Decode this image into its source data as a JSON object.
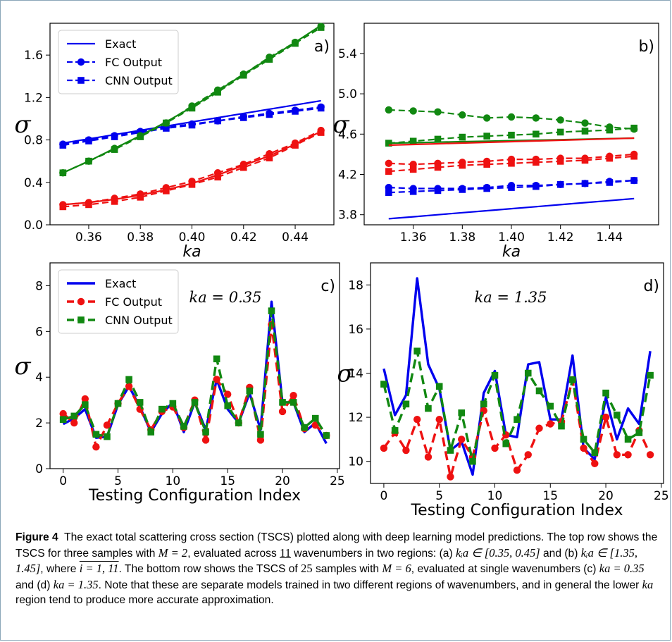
{
  "figure": {
    "caption_label": "Figure 4",
    "caption_text": "The exact total scattering cross section (TSCS) plotted along with deep learning model predictions. The top row shows the TSCS for three samples with M = 2, evaluated across 11 wavenumbers in two regions: (a) k_i a ∈ [0.35, 0.45] and (b) k_i a ∈ [1.35, 1.45], where i = 1,11. The bottom row shows the TSCS of 25 samples with M = 6, evaluated at single wavenumbers (c) ka = 0.35 and (d) ka = 1.35. Note that these are separate models trained in two different regions of wavenumbers, and in general the lower ka region tend to produce more accurate approximation.",
    "caption_parts": {
      "p1": "The exact total scattering cross section (TSCS) plotted along with deep learning model predictions. The top row shows the TSCS for three samples with ",
      "m2": "M = 2",
      "p2": ", evaluated across ",
      "n11": "11",
      "p3": " wavenumbers in two regions: (a) ",
      "ra": "kᵢa ∈ [0.35, 0.45]",
      "p4": " and (b) ",
      "rb": "kᵢa ∈ [1.35, 1.45]",
      "p5": ", where ",
      "iidx": "i = 1, 11",
      "p6": ". The bottom row shows the TSCS of ",
      "n25": "25",
      "p7": " samples with ",
      "m6": "M = 6",
      "p8": ", evaluated at single wavenumbers (c) ",
      "kc": "ka = 0.35",
      "p9": " and (d) ",
      "kd": "ka = 1.35",
      "p10": ". Note that these are separate models trained in two different regions of wavenumbers, and in general the lower ",
      "ka": "ka",
      "p11": " region tend to produce more accurate approximation."
    }
  },
  "colors": {
    "blue": "#0000ee",
    "red": "#ee1111",
    "green": "#118811"
  },
  "chart_data": [
    {
      "panel": "a)",
      "type": "line",
      "xlabel": "ka",
      "ylabel": "σ",
      "xlim": [
        0.345,
        0.455
      ],
      "ylim": [
        0.0,
        1.9
      ],
      "xticks": [
        0.36,
        0.38,
        0.4,
        0.42,
        0.44
      ],
      "xtick_labels": [
        "0.36",
        "0.38",
        "0.40",
        "0.42",
        "0.44"
      ],
      "yticks": [
        0.0,
        0.4,
        0.8,
        1.2,
        1.6
      ],
      "ytick_labels": [
        "0.0",
        "0.4",
        "0.8",
        "1.2",
        "1.6"
      ],
      "legend": {
        "placement": "top-left",
        "entries": [
          "Exact",
          "FC Output",
          "CNN Output"
        ]
      },
      "x": [
        0.35,
        0.36,
        0.37,
        0.38,
        0.39,
        0.4,
        0.41,
        0.42,
        0.43,
        0.44,
        0.45
      ],
      "series": [
        {
          "sample": "blue",
          "model": "Exact",
          "values": [
            0.77,
            0.81,
            0.85,
            0.89,
            0.93,
            0.97,
            1.01,
            1.05,
            1.09,
            1.13,
            1.17
          ]
        },
        {
          "sample": "blue",
          "model": "FC",
          "values": [
            0.76,
            0.8,
            0.84,
            0.88,
            0.92,
            0.95,
            0.98,
            1.02,
            1.05,
            1.08,
            1.11
          ]
        },
        {
          "sample": "blue",
          "model": "CNN",
          "values": [
            0.75,
            0.79,
            0.83,
            0.87,
            0.91,
            0.94,
            0.98,
            1.01,
            1.04,
            1.07,
            1.1
          ]
        },
        {
          "sample": "green",
          "model": "Exact",
          "values": [
            0.49,
            0.6,
            0.72,
            0.84,
            0.97,
            1.11,
            1.26,
            1.42,
            1.57,
            1.72,
            1.88
          ]
        },
        {
          "sample": "green",
          "model": "FC",
          "values": [
            0.49,
            0.6,
            0.72,
            0.84,
            0.96,
            1.12,
            1.27,
            1.42,
            1.58,
            1.72,
            1.87
          ]
        },
        {
          "sample": "green",
          "model": "CNN",
          "values": [
            0.49,
            0.6,
            0.71,
            0.83,
            0.96,
            1.1,
            1.25,
            1.41,
            1.56,
            1.71,
            1.86
          ]
        },
        {
          "sample": "red",
          "model": "Exact",
          "values": [
            0.19,
            0.21,
            0.24,
            0.28,
            0.33,
            0.39,
            0.47,
            0.56,
            0.65,
            0.76,
            0.88
          ]
        },
        {
          "sample": "red",
          "model": "FC",
          "values": [
            0.19,
            0.21,
            0.25,
            0.29,
            0.35,
            0.41,
            0.49,
            0.57,
            0.67,
            0.77,
            0.89
          ]
        },
        {
          "sample": "red",
          "model": "CNN",
          "values": [
            0.17,
            0.19,
            0.22,
            0.26,
            0.32,
            0.38,
            0.45,
            0.54,
            0.63,
            0.75,
            0.87
          ]
        }
      ]
    },
    {
      "panel": "b)",
      "type": "line",
      "xlabel": "ka",
      "ylabel": "σ",
      "xlim": [
        1.34,
        1.46
      ],
      "ylim": [
        3.7,
        5.7
      ],
      "xticks": [
        1.36,
        1.38,
        1.4,
        1.42,
        1.44
      ],
      "xtick_labels": [
        "1.36",
        "1.38",
        "1.40",
        "1.42",
        "1.44"
      ],
      "yticks": [
        3.8,
        4.2,
        4.6,
        5.0,
        5.4
      ],
      "ytick_labels": [
        "3.8",
        "4.2",
        "4.6",
        "5.0",
        "5.4"
      ],
      "x": [
        1.35,
        1.36,
        1.37,
        1.38,
        1.39,
        1.4,
        1.41,
        1.42,
        1.43,
        1.44,
        1.45
      ],
      "series": [
        {
          "sample": "green",
          "model": "Exact",
          "values": [
            4.51,
            4.515,
            4.52,
            4.525,
            4.53,
            4.535,
            4.54,
            4.545,
            4.55,
            4.555,
            4.56
          ]
        },
        {
          "sample": "green",
          "model": "FC",
          "values": [
            4.84,
            4.83,
            4.82,
            4.79,
            4.76,
            4.77,
            4.76,
            4.74,
            4.71,
            4.67,
            4.65
          ]
        },
        {
          "sample": "green",
          "model": "CNN",
          "values": [
            4.51,
            4.53,
            4.55,
            4.57,
            4.58,
            4.59,
            4.6,
            4.62,
            4.63,
            4.64,
            4.66
          ]
        },
        {
          "sample": "red",
          "model": "Exact",
          "values": [
            4.49,
            4.497,
            4.504,
            4.511,
            4.518,
            4.525,
            4.532,
            4.539,
            4.546,
            4.553,
            4.56
          ]
        },
        {
          "sample": "red",
          "model": "FC",
          "values": [
            4.31,
            4.3,
            4.31,
            4.32,
            4.33,
            4.35,
            4.35,
            4.36,
            4.36,
            4.38,
            4.4
          ]
        },
        {
          "sample": "red",
          "model": "CNN",
          "values": [
            4.23,
            4.25,
            4.27,
            4.29,
            4.3,
            4.31,
            4.32,
            4.33,
            4.34,
            4.36,
            4.38
          ]
        },
        {
          "sample": "blue",
          "model": "Exact",
          "values": [
            3.76,
            3.78,
            3.8,
            3.82,
            3.84,
            3.86,
            3.88,
            3.9,
            3.92,
            3.94,
            3.96
          ]
        },
        {
          "sample": "blue",
          "model": "FC",
          "values": [
            4.07,
            4.06,
            4.06,
            4.06,
            4.07,
            4.09,
            4.09,
            4.1,
            4.11,
            4.13,
            4.14
          ]
        },
        {
          "sample": "blue",
          "model": "CNN",
          "values": [
            4.02,
            4.03,
            4.04,
            4.05,
            4.06,
            4.07,
            4.08,
            4.1,
            4.11,
            4.12,
            4.14
          ]
        }
      ]
    },
    {
      "panel": "c)",
      "type": "line",
      "xlabel": "Testing Configuration Index",
      "ylabel": "σ",
      "annotation": "ka = 0.35",
      "xlim": [
        -1.2,
        25.2
      ],
      "ylim": [
        0,
        9
      ],
      "xticks": [
        0,
        5,
        10,
        15,
        20,
        25
      ],
      "xtick_labels": [
        "0",
        "5",
        "10",
        "15",
        "20",
        "25"
      ],
      "yticks": [
        0,
        2,
        4,
        6,
        8
      ],
      "ytick_labels": [
        "0",
        "2",
        "4",
        "6",
        "8"
      ],
      "legend": {
        "placement": "top-left",
        "entries": [
          "Exact",
          "FC Output",
          "CNN Output"
        ]
      },
      "x": [
        0,
        1,
        2,
        3,
        4,
        5,
        6,
        7,
        8,
        9,
        10,
        11,
        12,
        13,
        14,
        15,
        16,
        17,
        18,
        19,
        20,
        21,
        22,
        23,
        24
      ],
      "series": [
        {
          "name": "Exact",
          "values": [
            1.95,
            2.2,
            2.6,
            1.35,
            1.4,
            2.8,
            3.6,
            2.7,
            1.6,
            2.4,
            2.9,
            1.6,
            2.9,
            1.7,
            3.9,
            2.6,
            2.0,
            3.3,
            1.7,
            7.3,
            2.9,
            2.9,
            1.6,
            2.0,
            1.1
          ]
        },
        {
          "name": "FC Output",
          "values": [
            2.4,
            2.0,
            3.05,
            0.95,
            1.9,
            2.85,
            3.6,
            2.6,
            1.7,
            2.5,
            2.7,
            1.8,
            3.0,
            1.25,
            3.9,
            3.25,
            2.0,
            3.55,
            1.25,
            6.3,
            2.5,
            3.2,
            1.75,
            1.9,
            1.45
          ]
        },
        {
          "name": "CNN Output",
          "values": [
            2.15,
            2.3,
            2.8,
            1.5,
            1.4,
            2.85,
            3.9,
            2.9,
            1.6,
            2.6,
            2.85,
            1.85,
            2.9,
            1.6,
            4.8,
            2.75,
            2.0,
            3.4,
            1.5,
            6.9,
            2.9,
            2.9,
            1.8,
            2.2,
            1.45
          ]
        }
      ]
    },
    {
      "panel": "d)",
      "type": "line",
      "xlabel": "Testing Configuration Index",
      "ylabel": "σ",
      "annotation": "ka = 1.35",
      "xlim": [
        -1.2,
        25.2
      ],
      "ylim": [
        9.0,
        19.0
      ],
      "xticks": [
        0,
        5,
        10,
        15,
        20,
        25
      ],
      "xtick_labels": [
        "0",
        "5",
        "10",
        "15",
        "20",
        "25"
      ],
      "yticks": [
        10,
        12,
        14,
        16,
        18
      ],
      "ytick_labels": [
        "10",
        "12",
        "14",
        "16",
        "18"
      ],
      "x": [
        0,
        1,
        2,
        3,
        4,
        5,
        6,
        7,
        8,
        9,
        10,
        11,
        12,
        13,
        14,
        15,
        16,
        17,
        18,
        19,
        20,
        21,
        22,
        23,
        24
      ],
      "series": [
        {
          "name": "Exact",
          "values": [
            14.2,
            12.1,
            13.0,
            18.3,
            14.4,
            13.3,
            10.5,
            10.9,
            9.4,
            13.1,
            14.1,
            11.2,
            11.1,
            14.4,
            14.5,
            11.9,
            11.9,
            14.8,
            10.6,
            10.1,
            12.9,
            11.0,
            12.4,
            11.7,
            15.0
          ]
        },
        {
          "name": "FC Output",
          "values": [
            10.6,
            11.3,
            10.5,
            11.9,
            10.2,
            11.9,
            9.3,
            11.0,
            10.2,
            12.3,
            10.6,
            11.2,
            9.6,
            10.3,
            11.5,
            11.7,
            11.8,
            13.7,
            10.6,
            9.9,
            12.0,
            10.3,
            10.3,
            11.4,
            10.3
          ]
        },
        {
          "name": "CNN Output",
          "values": [
            13.5,
            11.4,
            12.6,
            15.0,
            12.4,
            13.4,
            10.5,
            12.2,
            10.0,
            12.6,
            13.9,
            10.8,
            11.9,
            14.0,
            13.2,
            12.5,
            11.6,
            13.7,
            11.0,
            10.4,
            13.1,
            12.1,
            11.0,
            11.3,
            13.9
          ]
        }
      ]
    }
  ]
}
